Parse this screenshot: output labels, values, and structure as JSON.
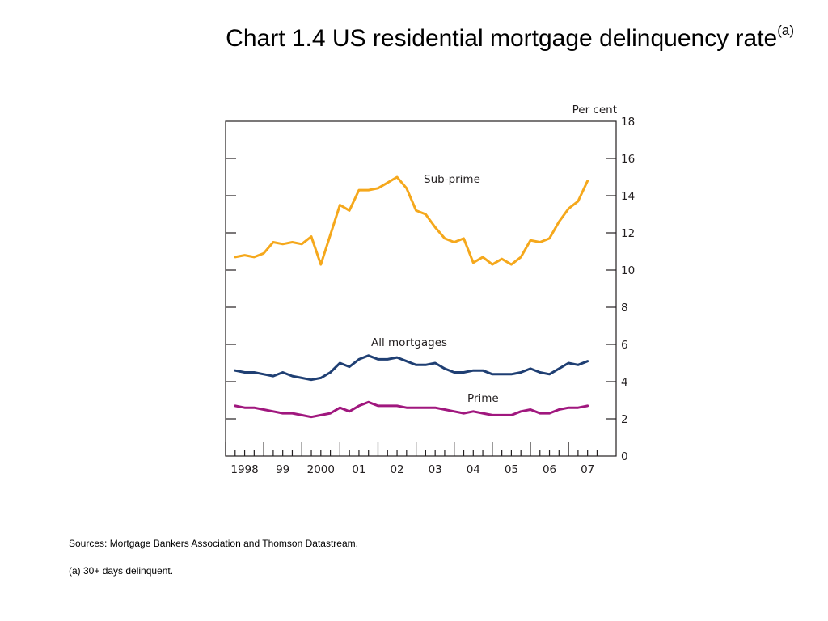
{
  "slide": {
    "title": "Chart 1.4  US residential mortgage delinquency rate",
    "title_superscript": "(a)",
    "sources": "Sources:  Mortgage Bankers Association and Thomson Datastream.",
    "footnote": "(a)  30+ days delinquent."
  },
  "chart_data": {
    "type": "line",
    "ylabel": "Per cent",
    "ylim": [
      0,
      18
    ],
    "y_ticks": [
      0,
      2,
      4,
      6,
      8,
      10,
      12,
      14,
      16,
      18
    ],
    "y_tick_labels": [
      "0",
      "2",
      "4",
      "6",
      "8",
      "10",
      "12",
      "14",
      "16",
      "18"
    ],
    "x_range": [
      1997.5,
      2007.75
    ],
    "x_year_ticks": [
      1998,
      1999,
      2000,
      2001,
      2002,
      2003,
      2004,
      2005,
      2006,
      2007
    ],
    "x_tick_labels": [
      "1998",
      "99",
      "2000",
      "01",
      "02",
      "03",
      "04",
      "05",
      "06",
      "07"
    ],
    "grid": false,
    "series": [
      {
        "name": "Sub-prime",
        "color": "#f5a81c",
        "x": [
          1997.75,
          1998.0,
          1998.25,
          1998.5,
          1998.75,
          1999.0,
          1999.25,
          1999.5,
          1999.75,
          2000.0,
          2000.25,
          2000.5,
          2000.75,
          2001.0,
          2001.25,
          2001.5,
          2001.75,
          2002.0,
          2002.25,
          2002.5,
          2002.75,
          2003.0,
          2003.25,
          2003.5,
          2003.75,
          2004.0,
          2004.25,
          2004.5,
          2004.75,
          2005.0,
          2005.25,
          2005.5,
          2005.75,
          2006.0,
          2006.25,
          2006.5,
          2006.75,
          2007.0
        ],
        "values": [
          10.7,
          10.8,
          10.7,
          10.9,
          11.5,
          11.4,
          11.5,
          11.4,
          11.8,
          10.3,
          11.9,
          13.5,
          13.2,
          14.3,
          14.3,
          14.4,
          14.7,
          15.0,
          14.4,
          13.2,
          13.0,
          12.3,
          11.7,
          11.5,
          11.7,
          10.4,
          10.7,
          10.3,
          10.6,
          10.3,
          10.7,
          11.6,
          11.5,
          11.7,
          12.6,
          13.3,
          13.7,
          14.8
        ]
      },
      {
        "name": "All mortgages",
        "color": "#1f3f73",
        "x": [
          1997.75,
          1998.0,
          1998.25,
          1998.5,
          1998.75,
          1999.0,
          1999.25,
          1999.5,
          1999.75,
          2000.0,
          2000.25,
          2000.5,
          2000.75,
          2001.0,
          2001.25,
          2001.5,
          2001.75,
          2002.0,
          2002.25,
          2002.5,
          2002.75,
          2003.0,
          2003.25,
          2003.5,
          2003.75,
          2004.0,
          2004.25,
          2004.5,
          2004.75,
          2005.0,
          2005.25,
          2005.5,
          2005.75,
          2006.0,
          2006.25,
          2006.5,
          2006.75,
          2007.0
        ],
        "values": [
          4.6,
          4.5,
          4.5,
          4.4,
          4.3,
          4.5,
          4.3,
          4.2,
          4.1,
          4.2,
          4.5,
          5.0,
          4.8,
          5.2,
          5.4,
          5.2,
          5.2,
          5.3,
          5.1,
          4.9,
          4.9,
          5.0,
          4.7,
          4.5,
          4.5,
          4.6,
          4.6,
          4.4,
          4.4,
          4.4,
          4.5,
          4.7,
          4.5,
          4.4,
          4.7,
          5.0,
          4.9,
          5.1
        ]
      },
      {
        "name": "Prime",
        "color": "#a0177e",
        "x": [
          1997.75,
          1998.0,
          1998.25,
          1998.5,
          1998.75,
          1999.0,
          1999.25,
          1999.5,
          1999.75,
          2000.0,
          2000.25,
          2000.5,
          2000.75,
          2001.0,
          2001.25,
          2001.5,
          2001.75,
          2002.0,
          2002.25,
          2002.5,
          2002.75,
          2003.0,
          2003.25,
          2003.5,
          2003.75,
          2004.0,
          2004.25,
          2004.5,
          2004.75,
          2005.0,
          2005.25,
          2005.5,
          2005.75,
          2006.0,
          2006.25,
          2006.5,
          2006.75,
          2007.0
        ],
        "values": [
          2.7,
          2.6,
          2.6,
          2.5,
          2.4,
          2.3,
          2.3,
          2.2,
          2.1,
          2.2,
          2.3,
          2.6,
          2.4,
          2.7,
          2.9,
          2.7,
          2.7,
          2.7,
          2.6,
          2.6,
          2.6,
          2.6,
          2.5,
          2.4,
          2.3,
          2.4,
          2.3,
          2.2,
          2.2,
          2.2,
          2.4,
          2.5,
          2.3,
          2.3,
          2.5,
          2.6,
          2.6,
          2.7
        ]
      }
    ]
  }
}
